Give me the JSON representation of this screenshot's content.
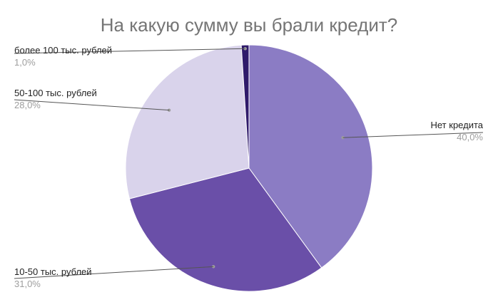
{
  "chart_data": {
    "type": "pie",
    "title": "На какую сумму вы брали кредит?",
    "slices": [
      {
        "label": "Нет кредита",
        "value": 40.0,
        "display": "40,0%",
        "color": "#8b7cc4"
      },
      {
        "label": "10-50 тыс. рублей",
        "value": 31.0,
        "display": "31,0%",
        "color": "#6a4fa8"
      },
      {
        "label": "50-100 тыс. рублей",
        "value": 28.0,
        "display": "28,0%",
        "color": "#d9d3eb"
      },
      {
        "label": "более 100 тыс. рублей",
        "value": 1.0,
        "display": "1,0%",
        "color": "#2f1a6b"
      }
    ],
    "start_angle_deg": 0,
    "direction": "clockwise"
  }
}
